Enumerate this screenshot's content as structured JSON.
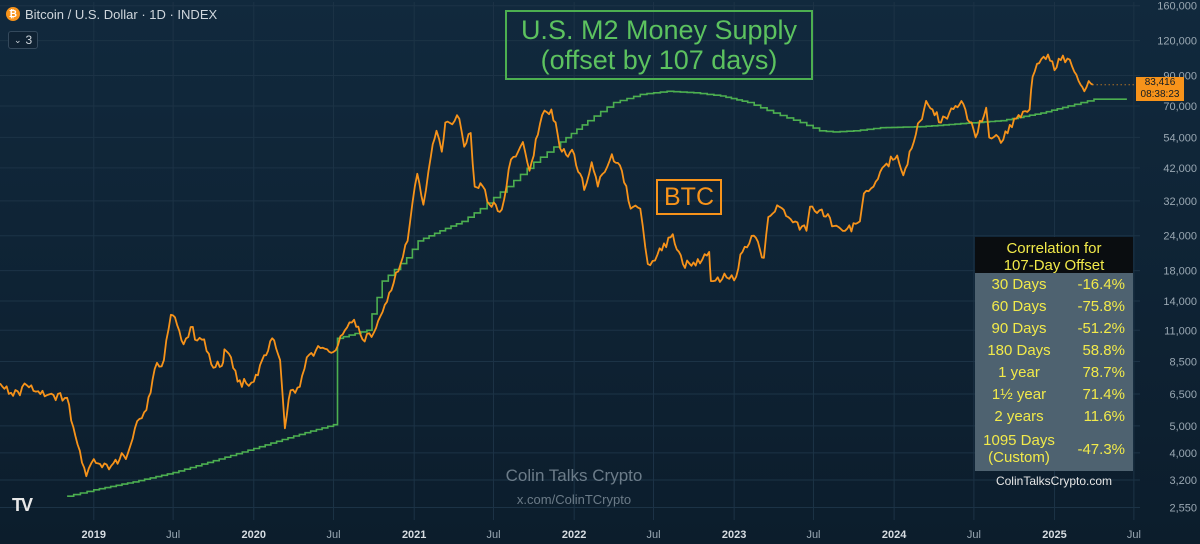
{
  "header": {
    "title": "Bitcoin / U.S. Dollar · 1D · INDEX",
    "indicator_count": "3",
    "coin_icon": "bitcoin-icon"
  },
  "watermark": {
    "name": "Colin Talks Crypto",
    "handle": "x.com/ColinTCrypto",
    "logo": "TV"
  },
  "annotations": {
    "m2_line1": "U.S. M2 Money Supply",
    "m2_line2": "(offset by 107 days)",
    "btc_label": "BTC"
  },
  "price_tag": {
    "price": "83,416",
    "countdown": "08:38:23"
  },
  "correlation_table": {
    "title_line1": "Correlation for",
    "title_line2": "107-Day Offset",
    "rows": [
      {
        "period": "30 Days",
        "value": "-16.4%"
      },
      {
        "period": "60 Days",
        "value": "-75.8%"
      },
      {
        "period": "90 Days",
        "value": "-51.2%"
      },
      {
        "period": "180 Days",
        "value": "58.8%"
      },
      {
        "period": "1 year",
        "value": "78.7%"
      },
      {
        "period": "1½ year",
        "value": "71.4%"
      },
      {
        "period": "2 years",
        "value": "11.6%"
      },
      {
        "period_line1": "1095 Days",
        "period_line2": "(Custom)",
        "value": "-47.3%"
      }
    ],
    "footer": "ColinTalksCrypto.com"
  },
  "colors": {
    "btc": "#f7931a",
    "m2": "#4caf50",
    "table_text": "#f2ea4a",
    "background": "#0f2233"
  },
  "chart_data": {
    "type": "line",
    "y_scale": "log",
    "ylim": [
      2300,
      165000
    ],
    "y_ticks": [
      160000,
      120000,
      90000,
      70000,
      54000,
      42000,
      32000,
      24000,
      18000,
      14000,
      11000,
      8500,
      6500,
      5000,
      4000,
      3200,
      2550
    ],
    "y_tick_labels": [
      "160,000",
      "120,000",
      "90,000",
      "70,000",
      "54,000",
      "42,000",
      "32,000",
      "24,000",
      "18,000",
      "14,000",
      "11,000",
      "8,500",
      "6,500",
      "5,000",
      "4,000",
      "3,200",
      "2,550"
    ],
    "x_range": [
      "2018-06-01",
      "2025-07-15"
    ],
    "x_ticks": [
      "2019-01-01",
      "2019-07-01",
      "2020-01-01",
      "2020-07-01",
      "2021-01-01",
      "2021-07-01",
      "2022-01-01",
      "2022-07-01",
      "2023-01-01",
      "2023-07-01",
      "2024-01-01",
      "2024-07-01",
      "2025-01-01",
      "2025-07-01"
    ],
    "x_tick_labels": [
      "2019",
      "Jul",
      "2020",
      "Jul",
      "2021",
      "Jul",
      "2022",
      "Jul",
      "2023",
      "Jul",
      "2024",
      "Jul",
      "2025",
      "Jul"
    ],
    "series": [
      {
        "name": "BTC",
        "color": "#f7931a",
        "points": [
          [
            "2018-06-01",
            7100
          ],
          [
            "2018-07-01",
            6400
          ],
          [
            "2018-08-01",
            7000
          ],
          [
            "2018-09-01",
            6500
          ],
          [
            "2018-10-01",
            6450
          ],
          [
            "2018-11-01",
            6300
          ],
          [
            "2018-11-20",
            4600
          ],
          [
            "2018-12-15",
            3300
          ],
          [
            "2019-01-01",
            3800
          ],
          [
            "2019-01-20",
            3550
          ],
          [
            "2019-02-10",
            3600
          ],
          [
            "2019-03-01",
            3800
          ],
          [
            "2019-03-20",
            4000
          ],
          [
            "2019-04-10",
            5200
          ],
          [
            "2019-05-01",
            5700
          ],
          [
            "2019-05-20",
            8000
          ],
          [
            "2019-06-10",
            8600
          ],
          [
            "2019-06-26",
            12500
          ],
          [
            "2019-07-10",
            11500
          ],
          [
            "2019-07-25",
            9800
          ],
          [
            "2019-08-10",
            11300
          ],
          [
            "2019-08-25",
            10100
          ],
          [
            "2019-09-10",
            10200
          ],
          [
            "2019-09-26",
            8300
          ],
          [
            "2019-10-20",
            8200
          ],
          [
            "2019-10-26",
            9400
          ],
          [
            "2019-11-10",
            8800
          ],
          [
            "2019-11-25",
            7200
          ],
          [
            "2019-12-15",
            7100
          ],
          [
            "2020-01-01",
            7200
          ],
          [
            "2020-01-20",
            8600
          ],
          [
            "2020-02-12",
            10300
          ],
          [
            "2020-03-01",
            8600
          ],
          [
            "2020-03-12",
            4900
          ],
          [
            "2020-03-25",
            6700
          ],
          [
            "2020-04-15",
            6900
          ],
          [
            "2020-05-01",
            8800
          ],
          [
            "2020-06-01",
            9500
          ],
          [
            "2020-07-01",
            9200
          ],
          [
            "2020-07-27",
            11000
          ],
          [
            "2020-08-17",
            12000
          ],
          [
            "2020-09-05",
            10200
          ],
          [
            "2020-10-01",
            10800
          ],
          [
            "2020-10-21",
            12800
          ],
          [
            "2020-11-10",
            15300
          ],
          [
            "2020-12-01",
            19000
          ],
          [
            "2020-12-17",
            23000
          ],
          [
            "2021-01-08",
            40000
          ],
          [
            "2021-01-22",
            31000
          ],
          [
            "2021-02-08",
            46000
          ],
          [
            "2021-02-21",
            57000
          ],
          [
            "2021-03-05",
            48000
          ],
          [
            "2021-03-13",
            61000
          ],
          [
            "2021-04-14",
            63000
          ],
          [
            "2021-04-25",
            50000
          ],
          [
            "2021-05-10",
            56000
          ],
          [
            "2021-05-19",
            36000
          ],
          [
            "2021-06-01",
            37000
          ],
          [
            "2021-06-22",
            31000
          ],
          [
            "2021-07-20",
            29800
          ],
          [
            "2021-08-10",
            45000
          ],
          [
            "2021-09-06",
            52000
          ],
          [
            "2021-09-21",
            41000
          ],
          [
            "2021-10-20",
            65000
          ],
          [
            "2021-11-10",
            68000
          ],
          [
            "2021-12-04",
            48000
          ],
          [
            "2022-01-01",
            47000
          ],
          [
            "2022-01-24",
            35000
          ],
          [
            "2022-02-10",
            44000
          ],
          [
            "2022-02-24",
            36000
          ],
          [
            "2022-03-28",
            47000
          ],
          [
            "2022-04-20",
            41000
          ],
          [
            "2022-05-10",
            30000
          ],
          [
            "2022-06-01",
            30000
          ],
          [
            "2022-06-18",
            19000
          ],
          [
            "2022-07-10",
            20500
          ],
          [
            "2022-08-14",
            24300
          ],
          [
            "2022-09-06",
            19000
          ],
          [
            "2022-10-15",
            19100
          ],
          [
            "2022-11-05",
            21000
          ],
          [
            "2022-11-09",
            16500
          ],
          [
            "2022-12-15",
            17000
          ],
          [
            "2023-01-01",
            16600
          ],
          [
            "2023-01-20",
            21000
          ],
          [
            "2023-02-15",
            24000
          ],
          [
            "2023-03-10",
            20000
          ],
          [
            "2023-03-20",
            28000
          ],
          [
            "2023-04-14",
            30500
          ],
          [
            "2023-05-10",
            27500
          ],
          [
            "2023-06-15",
            25000
          ],
          [
            "2023-06-23",
            30500
          ],
          [
            "2023-07-20",
            29800
          ],
          [
            "2023-08-17",
            26000
          ],
          [
            "2023-09-11",
            25000
          ],
          [
            "2023-10-15",
            27000
          ],
          [
            "2023-10-24",
            34000
          ],
          [
            "2023-11-15",
            36000
          ],
          [
            "2023-12-05",
            42000
          ],
          [
            "2024-01-08",
            46500
          ],
          [
            "2024-01-22",
            39500
          ],
          [
            "2024-02-15",
            52000
          ],
          [
            "2024-03-14",
            73000
          ],
          [
            "2024-04-17",
            61000
          ],
          [
            "2024-05-20",
            70000
          ],
          [
            "2024-06-07",
            71000
          ],
          [
            "2024-07-05",
            54000
          ],
          [
            "2024-07-29",
            69000
          ],
          [
            "2024-08-05",
            54000
          ],
          [
            "2024-09-06",
            53000
          ],
          [
            "2024-10-01",
            63000
          ],
          [
            "2024-11-05",
            68000
          ],
          [
            "2024-11-12",
            89000
          ],
          [
            "2024-11-22",
            99000
          ],
          [
            "2024-12-17",
            107000
          ],
          [
            "2025-01-01",
            94000
          ],
          [
            "2025-01-20",
            106000
          ],
          [
            "2025-02-10",
            97000
          ],
          [
            "2025-02-25",
            86000
          ],
          [
            "2025-03-10",
            79000
          ],
          [
            "2025-03-20",
            86000
          ],
          [
            "2025-03-29",
            83416
          ]
        ]
      },
      {
        "name": "U.S. M2 Money Supply (offset by 107 days)",
        "color": "#4caf50",
        "points": [
          [
            "2018-11-01",
            2800
          ],
          [
            "2019-01-01",
            2950
          ],
          [
            "2019-04-01",
            3150
          ],
          [
            "2019-07-01",
            3400
          ],
          [
            "2019-10-01",
            3750
          ],
          [
            "2020-01-01",
            4150
          ],
          [
            "2020-04-01",
            4600
          ],
          [
            "2020-07-01",
            5050
          ],
          [
            "2020-07-10",
            10300
          ],
          [
            "2020-09-15",
            11000
          ],
          [
            "2020-10-20",
            16500
          ],
          [
            "2020-12-15",
            20000
          ],
          [
            "2021-01-10",
            23000
          ],
          [
            "2021-03-01",
            25000
          ],
          [
            "2021-04-20",
            27000
          ],
          [
            "2021-06-01",
            30000
          ],
          [
            "2021-08-01",
            36000
          ],
          [
            "2021-10-01",
            44000
          ],
          [
            "2021-12-01",
            52000
          ],
          [
            "2022-02-01",
            62000
          ],
          [
            "2022-04-01",
            72000
          ],
          [
            "2022-06-01",
            77000
          ],
          [
            "2022-08-01",
            79000
          ],
          [
            "2022-10-01",
            78000
          ],
          [
            "2022-12-01",
            76000
          ],
          [
            "2023-02-01",
            72000
          ],
          [
            "2023-04-01",
            66000
          ],
          [
            "2023-06-01",
            61000
          ],
          [
            "2023-07-15",
            57000
          ],
          [
            "2023-08-15",
            56500
          ],
          [
            "2023-10-01",
            57000
          ],
          [
            "2023-12-01",
            58500
          ],
          [
            "2024-03-01",
            59000
          ],
          [
            "2024-06-01",
            60500
          ],
          [
            "2024-09-01",
            62000
          ],
          [
            "2024-12-01",
            66000
          ],
          [
            "2025-02-01",
            70000
          ],
          [
            "2025-04-01",
            74000
          ],
          [
            "2025-06-15",
            74000
          ]
        ]
      }
    ]
  }
}
